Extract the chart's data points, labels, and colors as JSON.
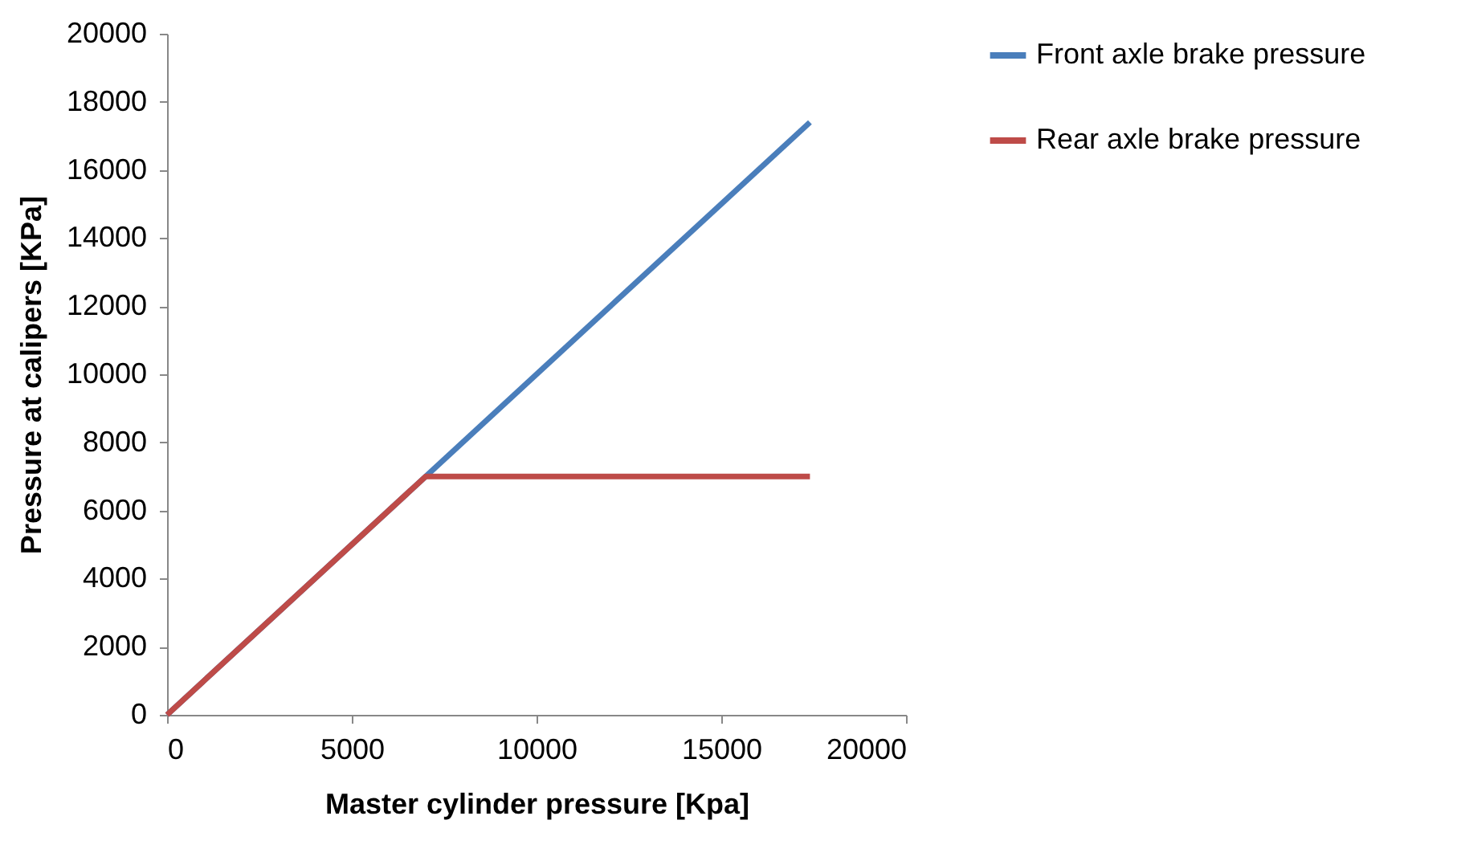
{
  "chart_data": {
    "type": "line",
    "xlabel": "Master cylinder pressure [Kpa]",
    "ylabel": "Pressure at calipers [KPa]",
    "xlim": [
      0,
      20000
    ],
    "xticks": [
      0,
      5000,
      10000,
      15000,
      20000
    ],
    "ylim": [
      0,
      20000
    ],
    "yticks": [
      0,
      2000,
      4000,
      6000,
      8000,
      10000,
      12000,
      14000,
      16000,
      18000,
      20000
    ],
    "grid": false,
    "legend": "right",
    "marker": "none",
    "line_style": "solid",
    "series": [
      {
        "name": "Front axle brake pressure",
        "color": "#4a7ebb",
        "x": [
          0,
          17400
        ],
        "values": [
          0,
          17400
        ]
      },
      {
        "name": "Rear axle brake pressure",
        "color": "#be4b48",
        "x": [
          0,
          7000,
          17400
        ],
        "values": [
          0,
          7000,
          7000
        ]
      }
    ]
  }
}
